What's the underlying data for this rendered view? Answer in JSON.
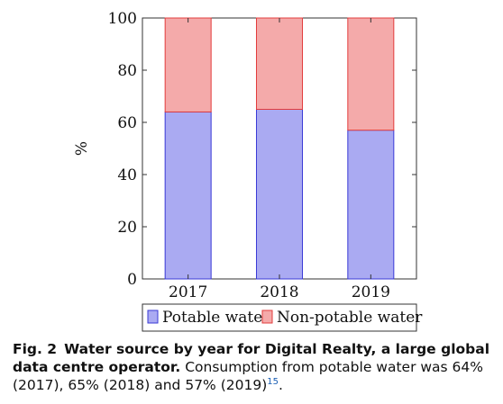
{
  "chart_data": {
    "type": "bar",
    "stacked": true,
    "categories": [
      "2017",
      "2018",
      "2019"
    ],
    "series": [
      {
        "name": "Potable water",
        "values": [
          64,
          65,
          57
        ],
        "color": "#aaaaf2",
        "stroke": "#3a3ad6"
      },
      {
        "name": "Non-potable water",
        "values": [
          36,
          35,
          43
        ],
        "color": "#f4aaaa",
        "stroke": "#e23c3c"
      }
    ],
    "ylabel": "%",
    "xlabel": "",
    "ylim": [
      0,
      100
    ],
    "yticks": [
      "0",
      "20",
      "40",
      "60",
      "80",
      "100"
    ],
    "grid": false,
    "legend_position": "bottom"
  },
  "caption": {
    "fig_label": "Fig. 2",
    "title": "Water source by year for Digital Realty, a large global data centre operator.",
    "text": " Consumption from potable water was 64% (2017), 65% (2018) and 57% (2019)",
    "ref": "15",
    "end": "."
  }
}
